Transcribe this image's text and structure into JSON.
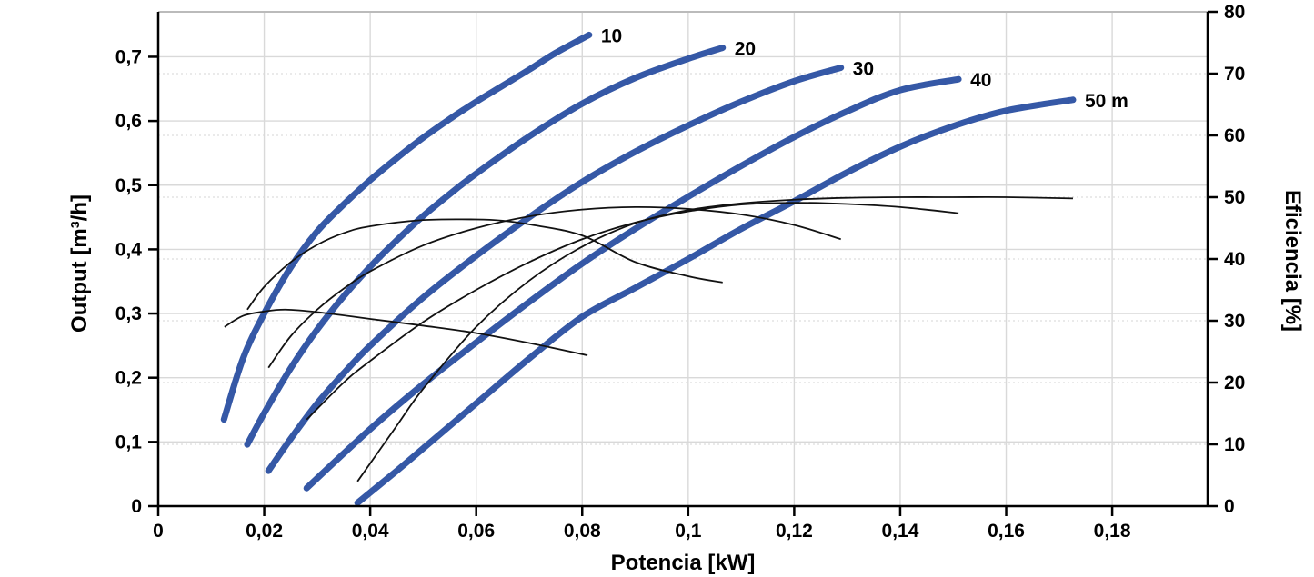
{
  "chart_data": {
    "type": "line",
    "title": "",
    "xlabel": "Potencia [kW]",
    "ylabel_left": "Output [m³/h]",
    "ylabel_right": "Eficiencia [%]",
    "legend": "none",
    "grid": {
      "vertical_major": true,
      "horizontal_major_left_axis": true,
      "horizontal_dotted_right_axis": true
    },
    "axes": {
      "x": {
        "min": 0,
        "max": 0.198,
        "major_step": 0.02
      },
      "left": {
        "min": 0,
        "max": 0.77,
        "major_step": 0.1
      },
      "right": {
        "min": 0,
        "max": 80,
        "major_step": 10
      }
    },
    "x_ticks": [
      {
        "v": 0,
        "label": "0"
      },
      {
        "v": 0.02,
        "label": "0,02"
      },
      {
        "v": 0.04,
        "label": "0,04"
      },
      {
        "v": 0.06,
        "label": "0,06"
      },
      {
        "v": 0.08,
        "label": "0,08"
      },
      {
        "v": 0.1,
        "label": "0,1"
      },
      {
        "v": 0.12,
        "label": "0,12"
      },
      {
        "v": 0.14,
        "label": "0,14"
      },
      {
        "v": 0.16,
        "label": "0,16"
      },
      {
        "v": 0.18,
        "label": "0,18"
      }
    ],
    "left_ticks": [
      {
        "v": 0,
        "label": "0"
      },
      {
        "v": 0.1,
        "label": "0,1"
      },
      {
        "v": 0.2,
        "label": "0,2"
      },
      {
        "v": 0.3,
        "label": "0,3"
      },
      {
        "v": 0.4,
        "label": "0,4"
      },
      {
        "v": 0.5,
        "label": "0,5"
      },
      {
        "v": 0.6,
        "label": "0,6"
      },
      {
        "v": 0.7,
        "label": "0,7"
      }
    ],
    "right_ticks": [
      {
        "v": 0,
        "label": "0"
      },
      {
        "v": 10,
        "label": "10"
      },
      {
        "v": 20,
        "label": "20"
      },
      {
        "v": 30,
        "label": "30"
      },
      {
        "v": 40,
        "label": "40"
      },
      {
        "v": 50,
        "label": "50"
      },
      {
        "v": 60,
        "label": "60"
      },
      {
        "v": 70,
        "label": "70"
      },
      {
        "v": 80,
        "label": "80"
      }
    ],
    "colors": {
      "pump_curve": "#3558a6",
      "efficiency_curve": "#121212",
      "grid_major": "#d9d9d9",
      "grid_dotted": "#dedede",
      "axis": "#000000",
      "top_border": "#bbbbbb",
      "label_text": "#000000"
    },
    "pump_curves": [
      {
        "label": "10",
        "head_m": 10,
        "points_kw_m3h": [
          [
            0.0124,
            0.135
          ],
          [
            0.016,
            0.23
          ],
          [
            0.02,
            0.3
          ],
          [
            0.025,
            0.372
          ],
          [
            0.03,
            0.428
          ],
          [
            0.035,
            0.47
          ],
          [
            0.04,
            0.508
          ],
          [
            0.045,
            0.542
          ],
          [
            0.05,
            0.574
          ],
          [
            0.055,
            0.603
          ],
          [
            0.06,
            0.63
          ],
          [
            0.065,
            0.655
          ],
          [
            0.07,
            0.68
          ],
          [
            0.075,
            0.706
          ],
          [
            0.0813,
            0.734
          ]
        ]
      },
      {
        "label": "20",
        "head_m": 20,
        "points_kw_m3h": [
          [
            0.0168,
            0.096
          ],
          [
            0.02,
            0.145
          ],
          [
            0.025,
            0.215
          ],
          [
            0.03,
            0.275
          ],
          [
            0.035,
            0.327
          ],
          [
            0.04,
            0.373
          ],
          [
            0.045,
            0.414
          ],
          [
            0.05,
            0.452
          ],
          [
            0.055,
            0.486
          ],
          [
            0.06,
            0.518
          ],
          [
            0.07,
            0.576
          ],
          [
            0.08,
            0.627
          ],
          [
            0.09,
            0.667
          ],
          [
            0.1,
            0.697
          ],
          [
            0.1065,
            0.714
          ]
        ]
      },
      {
        "label": "30",
        "head_m": 30,
        "points_kw_m3h": [
          [
            0.0208,
            0.055
          ],
          [
            0.025,
            0.105
          ],
          [
            0.03,
            0.16
          ],
          [
            0.035,
            0.207
          ],
          [
            0.04,
            0.25
          ],
          [
            0.05,
            0.325
          ],
          [
            0.06,
            0.39
          ],
          [
            0.07,
            0.45
          ],
          [
            0.08,
            0.505
          ],
          [
            0.09,
            0.552
          ],
          [
            0.1,
            0.593
          ],
          [
            0.11,
            0.63
          ],
          [
            0.12,
            0.662
          ],
          [
            0.1288,
            0.683
          ]
        ]
      },
      {
        "label": "40",
        "head_m": 40,
        "points_kw_m3h": [
          [
            0.028,
            0.028
          ],
          [
            0.04,
            0.12
          ],
          [
            0.05,
            0.19
          ],
          [
            0.06,
            0.255
          ],
          [
            0.07,
            0.318
          ],
          [
            0.08,
            0.378
          ],
          [
            0.09,
            0.432
          ],
          [
            0.1,
            0.482
          ],
          [
            0.11,
            0.53
          ],
          [
            0.12,
            0.575
          ],
          [
            0.13,
            0.615
          ],
          [
            0.14,
            0.648
          ],
          [
            0.151,
            0.665
          ]
        ]
      },
      {
        "label": "50 m",
        "head_m": 50,
        "points_kw_m3h": [
          [
            0.0376,
            0.005
          ],
          [
            0.045,
            0.055
          ],
          [
            0.05,
            0.09
          ],
          [
            0.06,
            0.16
          ],
          [
            0.07,
            0.23
          ],
          [
            0.08,
            0.295
          ],
          [
            0.09,
            0.34
          ],
          [
            0.1,
            0.385
          ],
          [
            0.11,
            0.432
          ],
          [
            0.12,
            0.475
          ],
          [
            0.13,
            0.52
          ],
          [
            0.14,
            0.56
          ],
          [
            0.15,
            0.592
          ],
          [
            0.16,
            0.616
          ],
          [
            0.1726,
            0.633
          ]
        ]
      }
    ],
    "efficiency_curves": [
      {
        "head_m": 10,
        "points_kw_pct": [
          [
            0.0125,
            29
          ],
          [
            0.016,
            30.8
          ],
          [
            0.02,
            31.5
          ],
          [
            0.024,
            31.8
          ],
          [
            0.03,
            31.4
          ],
          [
            0.04,
            30.3
          ],
          [
            0.05,
            29.2
          ],
          [
            0.06,
            28
          ],
          [
            0.07,
            26.4
          ],
          [
            0.081,
            24.4
          ]
        ]
      },
      {
        "head_m": 20,
        "points_kw_pct": [
          [
            0.0168,
            31.8
          ],
          [
            0.02,
            35.5
          ],
          [
            0.025,
            39.5
          ],
          [
            0.03,
            42.3
          ],
          [
            0.035,
            44.2
          ],
          [
            0.04,
            45.3
          ],
          [
            0.05,
            46.3
          ],
          [
            0.06,
            46.4
          ],
          [
            0.065,
            46.2
          ],
          [
            0.07,
            45.6
          ],
          [
            0.08,
            43.8
          ],
          [
            0.09,
            39.5
          ],
          [
            0.1,
            37.2
          ],
          [
            0.1065,
            36.2
          ]
        ]
      },
      {
        "head_m": 30,
        "points_kw_pct": [
          [
            0.0208,
            22.4
          ],
          [
            0.025,
            27.5
          ],
          [
            0.03,
            31.8
          ],
          [
            0.035,
            35.2
          ],
          [
            0.04,
            38
          ],
          [
            0.05,
            42.2
          ],
          [
            0.06,
            45
          ],
          [
            0.07,
            46.9
          ],
          [
            0.08,
            48
          ],
          [
            0.09,
            48.4
          ],
          [
            0.1,
            48.1
          ],
          [
            0.11,
            47.2
          ],
          [
            0.12,
            45.5
          ],
          [
            0.1288,
            43.2
          ]
        ]
      },
      {
        "head_m": 40,
        "points_kw_pct": [
          [
            0.028,
            14
          ],
          [
            0.035,
            20
          ],
          [
            0.04,
            23.5
          ],
          [
            0.05,
            29.8
          ],
          [
            0.06,
            35
          ],
          [
            0.07,
            39.5
          ],
          [
            0.08,
            43.2
          ],
          [
            0.09,
            45.9
          ],
          [
            0.1,
            47.7
          ],
          [
            0.11,
            48.8
          ],
          [
            0.12,
            49.1
          ],
          [
            0.13,
            48.9
          ],
          [
            0.14,
            48.4
          ],
          [
            0.151,
            47.4
          ]
        ]
      },
      {
        "head_m": 50,
        "points_kw_pct": [
          [
            0.0376,
            4
          ],
          [
            0.045,
            13
          ],
          [
            0.05,
            19
          ],
          [
            0.06,
            29
          ],
          [
            0.07,
            36.5
          ],
          [
            0.08,
            42
          ],
          [
            0.09,
            45.8
          ],
          [
            0.1,
            47.9
          ],
          [
            0.11,
            49
          ],
          [
            0.12,
            49.6
          ],
          [
            0.13,
            49.9
          ],
          [
            0.14,
            50
          ],
          [
            0.15,
            50
          ],
          [
            0.16,
            50
          ],
          [
            0.1726,
            49.8
          ]
        ]
      }
    ]
  }
}
